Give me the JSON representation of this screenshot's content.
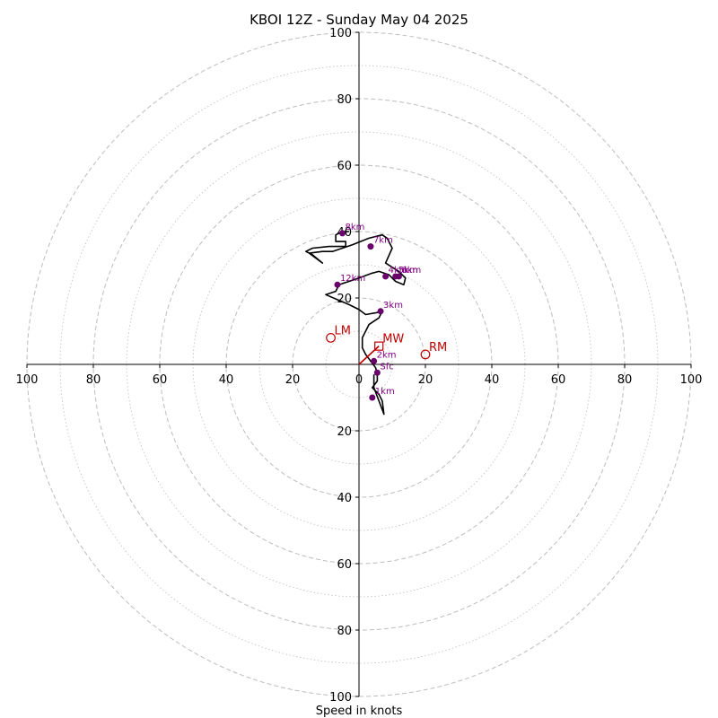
{
  "chart_data": {
    "type": "hodograph",
    "title": "KBOI 12Z - Sunday May 04 2025",
    "xlabel": "Speed in knots",
    "units": "knots",
    "ring_max": 100,
    "major_rings": [
      20,
      40,
      60,
      80,
      100
    ],
    "minor_rings": [
      10,
      30,
      50,
      70,
      90
    ],
    "x_tick_labels": [
      "100",
      "80",
      "60",
      "40",
      "20",
      "0",
      "20",
      "40",
      "60",
      "80",
      "100"
    ],
    "y_tick_labels_upper": [
      "20",
      "40",
      "60",
      "80",
      "100"
    ],
    "y_tick_labels_lower": [
      "20",
      "40",
      "60",
      "80",
      "100"
    ],
    "trace": [
      [
        4.5,
        -3
      ],
      [
        4.5,
        -7
      ],
      [
        7.5,
        -15
      ],
      [
        7,
        -11
      ],
      [
        6,
        -9
      ],
      [
        4,
        -7
      ],
      [
        5.5,
        -5
      ],
      [
        5.5,
        -3
      ],
      [
        5,
        -1
      ],
      [
        2,
        3
      ],
      [
        1,
        5
      ],
      [
        1,
        8
      ],
      [
        3,
        12
      ],
      [
        6,
        14
      ],
      [
        7,
        16
      ],
      [
        5,
        15.5
      ],
      [
        2,
        15
      ],
      [
        0,
        16.5
      ],
      [
        -3,
        18
      ],
      [
        -10,
        21
      ],
      [
        -7,
        22
      ],
      [
        -6,
        24
      ],
      [
        0,
        26
      ],
      [
        4,
        27.5
      ],
      [
        6,
        28
      ],
      [
        9,
        27
      ],
      [
        11,
        25
      ],
      [
        13.5,
        24
      ],
      [
        14,
        26
      ],
      [
        12,
        28
      ],
      [
        8,
        30.5
      ],
      [
        10,
        35
      ],
      [
        8.5,
        38
      ],
      [
        7,
        39
      ],
      [
        3,
        38
      ],
      [
        -2,
        36
      ],
      [
        -5,
        35
      ],
      [
        -8,
        34
      ],
      [
        -11,
        34
      ],
      [
        -15,
        33.5
      ],
      [
        -11,
        30.5
      ],
      [
        -14,
        33
      ],
      [
        -16,
        34
      ],
      [
        -14,
        35
      ],
      [
        -9,
        35.5
      ],
      [
        -4,
        35.5
      ],
      [
        -4,
        37
      ],
      [
        -7,
        37
      ],
      [
        -7,
        39
      ],
      [
        -5,
        40
      ],
      [
        -3,
        40
      ]
    ],
    "height_markers": [
      {
        "label": "Sfc",
        "u": 5.5,
        "v": -2.5
      },
      {
        "label": "1km",
        "u": 4,
        "v": -10
      },
      {
        "label": "2km",
        "u": 4.5,
        "v": 1
      },
      {
        "label": "3km",
        "u": 6.5,
        "v": 16
      },
      {
        "label": "4km",
        "u": 8,
        "v": 26.5
      },
      {
        "label": "5km",
        "u": 11,
        "v": 26.5
      },
      {
        "label": "6km",
        "u": 12,
        "v": 26.5
      },
      {
        "label": "7km",
        "u": 3.5,
        "v": 35.5
      },
      {
        "label": "8km",
        "u": -5,
        "v": 39.5
      },
      {
        "label": "12km",
        "u": -6.5,
        "v": 24
      }
    ],
    "motions": [
      {
        "label": "LM",
        "u": -8.5,
        "v": 8,
        "marker": "circle"
      },
      {
        "label": "MW",
        "u": 6,
        "v": 5.5,
        "marker": "square"
      },
      {
        "label": "RM",
        "u": 20,
        "v": 3,
        "marker": "circle"
      }
    ],
    "mean_wind_vector": {
      "u": 6,
      "v": 5.5
    },
    "colors": {
      "trace": "#000000",
      "height_markers": "#6a006a",
      "height_labels": "#800080",
      "motion_labels": "#c00000",
      "motion_vector": "#c00000",
      "rings": "#bdbdbd",
      "axes": "#000000"
    }
  }
}
